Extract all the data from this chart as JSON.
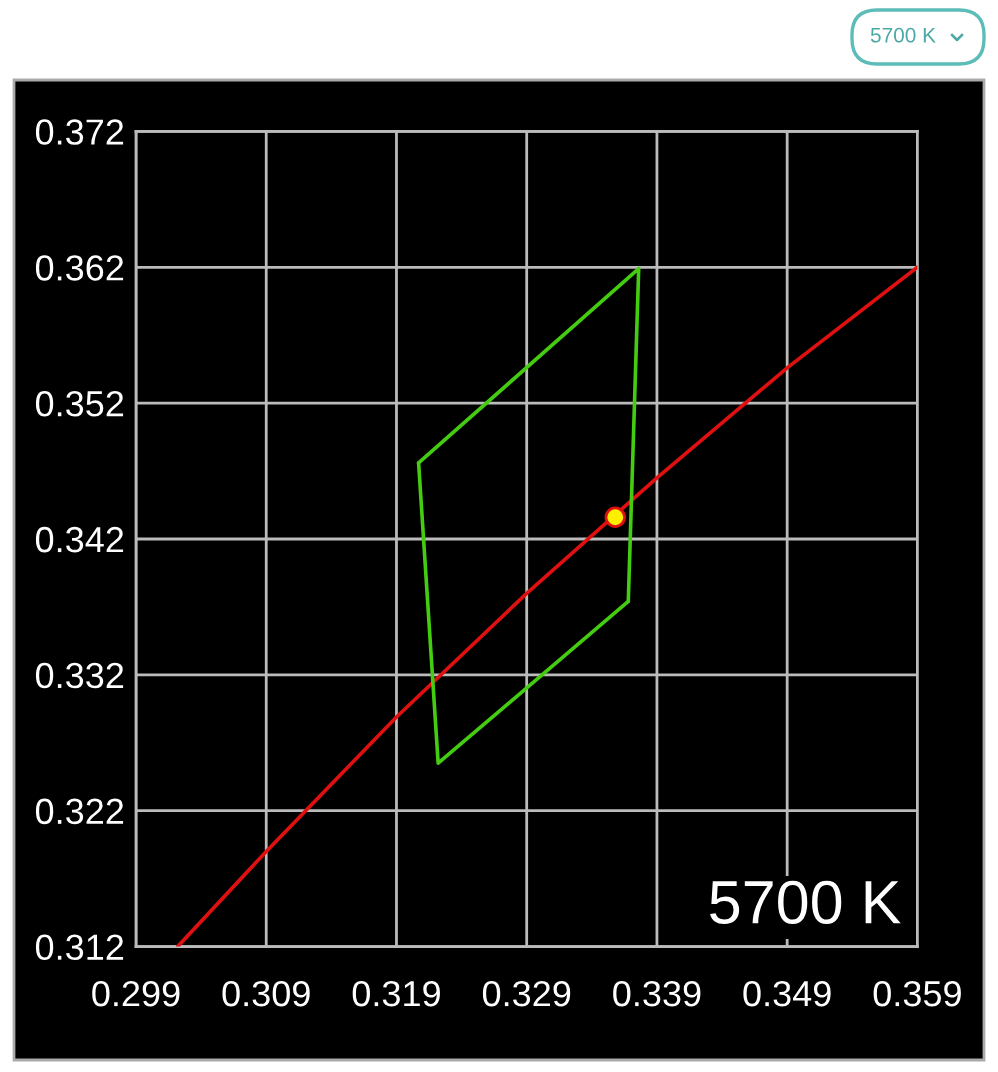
{
  "chart_data": {
    "type": "line",
    "title": "5700 K",
    "annotations": [
      "5700 K"
    ],
    "series": [
      {
        "color": "#e01010",
        "x": [
          0.3022,
          0.309,
          0.319,
          0.329,
          0.339,
          0.349,
          0.359
        ],
        "values": [
          0.312,
          0.319,
          0.3289,
          0.338,
          0.3465,
          0.3546,
          0.362
        ]
      },
      {
        "color": "#44cc11",
        "x": [
          0.3207,
          0.3376,
          0.3368
        ],
        "values": [
          0.3476,
          0.3619,
          0.3374
        ]
      },
      {
        "color": "#44cc11",
        "x": [
          0.3368,
          0.3222,
          0.3207
        ],
        "values": [
          0.3374,
          0.3255,
          0.3476
        ]
      },
      {
        "type": "scatter",
        "color": "#ffee00",
        "marker": "circle",
        "x": [
          0.3358
        ],
        "values": [
          0.3436
        ]
      }
    ],
    "xlim": [
      0.299,
      0.359
    ],
    "ylim": [
      0.312,
      0.372
    ],
    "xticks": [
      0.299,
      0.309,
      0.319,
      0.329,
      0.339,
      0.349,
      0.359
    ],
    "yticks": [
      0.312,
      0.322,
      0.332,
      0.342,
      0.352,
      0.362,
      0.372
    ],
    "grid": true
  }
}
